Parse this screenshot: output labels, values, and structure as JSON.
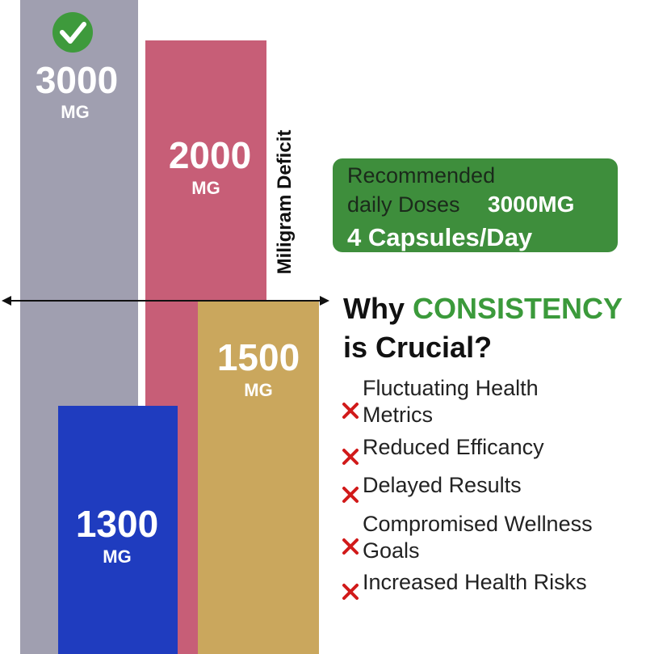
{
  "bars": [
    {
      "value": "3000",
      "unit": "MG"
    },
    {
      "value": "2000",
      "unit": "MG"
    },
    {
      "value": "1500",
      "unit": "MG"
    },
    {
      "value": "1300",
      "unit": "MG"
    }
  ],
  "axis_label": "Miligram Deficit",
  "callout": {
    "line1": "Recommended",
    "line2": "daily Doses",
    "dose": "3000MG",
    "capsules": "4 Capsules/Day"
  },
  "heading": {
    "prefix": "Why",
    "highlight": "CONSISTENCY",
    "line2": "is Crucial?"
  },
  "items": [
    [
      "Fluctuating Health",
      "Metrics"
    ],
    [
      "Reduced Efficancy"
    ],
    [
      "Delayed Results"
    ],
    [
      "Compromised Wellness",
      "Goals"
    ],
    [
      "Increased Health Risks"
    ]
  ]
}
